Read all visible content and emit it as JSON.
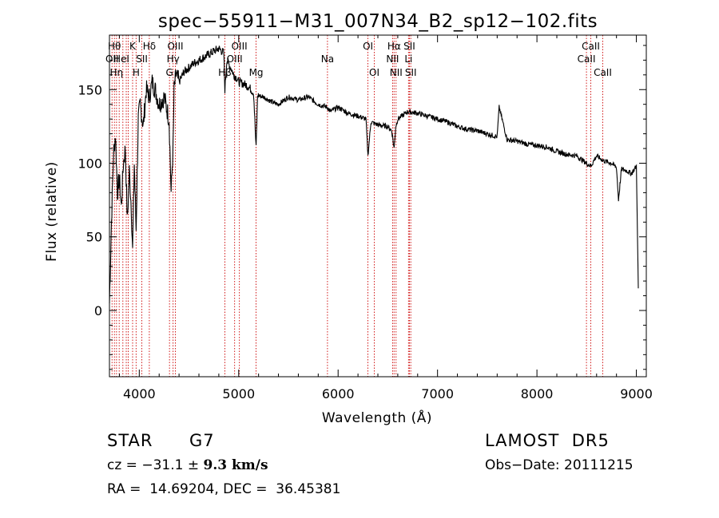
{
  "chart_data": {
    "type": "line",
    "title": "spec−55911−M31_007N34_B2_sp12−102.fits",
    "xlabel": "Wavelength (Å)",
    "ylabel": "Flux (relative)",
    "xlim": [
      3700,
      9100
    ],
    "ylim": [
      -45,
      187
    ],
    "x_ticks": [
      4000,
      5000,
      6000,
      7000,
      8000,
      9000
    ],
    "y_ticks": [
      0,
      50,
      100,
      150
    ],
    "x_minor_step": 200,
    "y_minor_step": 10,
    "line_color": "#000000",
    "marker_color": "#cc0000",
    "series": [
      {
        "x": [
          3700,
          3720,
          3740,
          3760,
          3780,
          3800,
          3820,
          3840,
          3860,
          3880,
          3900,
          3920,
          3933,
          3950,
          3968,
          3990,
          4010,
          4040,
          4070,
          4101,
          4130,
          4160,
          4200,
          4250,
          4300,
          4320,
          4340,
          4350,
          4370,
          4400,
          4450,
          4500,
          4550,
          4600,
          4650,
          4700,
          4750,
          4800,
          4850,
          4861,
          4880,
          4920,
          4950,
          4980,
          5000,
          5050,
          5100,
          5150,
          5175,
          5190,
          5250,
          5300,
          5350,
          5400,
          5500,
          5600,
          5700,
          5800,
          5893,
          5920,
          6000,
          6100,
          6200,
          6280,
          6300,
          6330,
          6400,
          6500,
          6540,
          6563,
          6580,
          6600,
          6700,
          6800,
          6900,
          7000,
          7100,
          7200,
          7300,
          7400,
          7500,
          7600,
          7620,
          7700,
          7800,
          7900,
          8000,
          8100,
          8200,
          8300,
          8400,
          8498,
          8542,
          8600,
          8662,
          8700,
          8750,
          8800,
          8820,
          8850,
          8900,
          8950,
          9000,
          9020
        ],
        "y": [
          5,
          60,
          105,
          120,
          80,
          90,
          70,
          100,
          110,
          60,
          95,
          70,
          40,
          100,
          55,
          130,
          140,
          125,
          150,
          145,
          155,
          150,
          140,
          145,
          130,
          80,
          110,
          150,
          160,
          155,
          162,
          165,
          168,
          170,
          172,
          174,
          176,
          178,
          175,
          150,
          170,
          165,
          160,
          158,
          155,
          154,
          152,
          148,
          110,
          146,
          145,
          143,
          141,
          140,
          145,
          143,
          145,
          140,
          138,
          135,
          138,
          134,
          132,
          130,
          105,
          128,
          126,
          125,
          122,
          110,
          125,
          130,
          135,
          134,
          132,
          130,
          128,
          125,
          123,
          122,
          120,
          118,
          138,
          116,
          115,
          113,
          112,
          111,
          108,
          106,
          105,
          100,
          98,
          105,
          102,
          101,
          100,
          97,
          75,
          96,
          95,
          93,
          98,
          15
        ]
      }
    ],
    "line_markers": [
      {
        "x": 3726,
        "label": "OII",
        "row": 2
      },
      {
        "x": 3750,
        "label": "Hθ",
        "row": 1
      },
      {
        "x": 3771,
        "label": "Hη",
        "row": 3
      },
      {
        "x": 3798,
        "label": "",
        "row": 0
      },
      {
        "x": 3835,
        "label": "",
        "row": 0
      },
      {
        "x": 3869,
        "label": "",
        "row": 0
      },
      {
        "x": 3889,
        "label": "",
        "row": 0
      },
      {
        "x": 3933,
        "label": "K",
        "row": 1
      },
      {
        "x": 3968,
        "label": "H",
        "row": 3
      },
      {
        "x": 4026,
        "label": "SII",
        "row": 2
      },
      {
        "x": 4101,
        "label": "Hδ",
        "row": 1
      },
      {
        "x": 4304,
        "label": "G",
        "row": 3
      },
      {
        "x": 4340,
        "label": "Hγ",
        "row": 2
      },
      {
        "x": 4363,
        "label": "OIII",
        "row": 1
      },
      {
        "x": 4861,
        "label": "Hβ",
        "row": 3
      },
      {
        "x": 4959,
        "label": "OIII",
        "row": 2
      },
      {
        "x": 5007,
        "label": "OIII",
        "row": 1
      },
      {
        "x": 5175,
        "label": "Mg",
        "row": 3
      },
      {
        "x": 5893,
        "label": "Na",
        "row": 2
      },
      {
        "x": 6300,
        "label": "OI",
        "row": 1
      },
      {
        "x": 6364,
        "label": "OI",
        "row": 3
      },
      {
        "x": 6548,
        "label": "NII",
        "row": 2
      },
      {
        "x": 6563,
        "label": "Hα",
        "row": 1
      },
      {
        "x": 6583,
        "label": "NII",
        "row": 3
      },
      {
        "x": 6708,
        "label": "Li",
        "row": 2
      },
      {
        "x": 6717,
        "label": "SII",
        "row": 1
      },
      {
        "x": 6731,
        "label": "SII",
        "row": 3
      },
      {
        "x": 8498,
        "label": "CaII",
        "row": 2
      },
      {
        "x": 8542,
        "label": "CaII",
        "row": 1
      },
      {
        "x": 8662,
        "label": "CaII",
        "row": 3
      }
    ],
    "extra_marker_labels": [
      {
        "x": 3820,
        "label": "HeI",
        "row": 2
      }
    ],
    "grid": false,
    "legend": "none"
  },
  "info": {
    "object_class": "STAR",
    "subclass": "G7",
    "survey": "LAMOST  DR5",
    "velocity_prefix": "cz = −31.1 ± ",
    "velocity_value": "9.3 km/s",
    "obs_date": "Obs−Date: 20111215",
    "coords": "RA =  14.69204, DEC =  36.45381"
  }
}
